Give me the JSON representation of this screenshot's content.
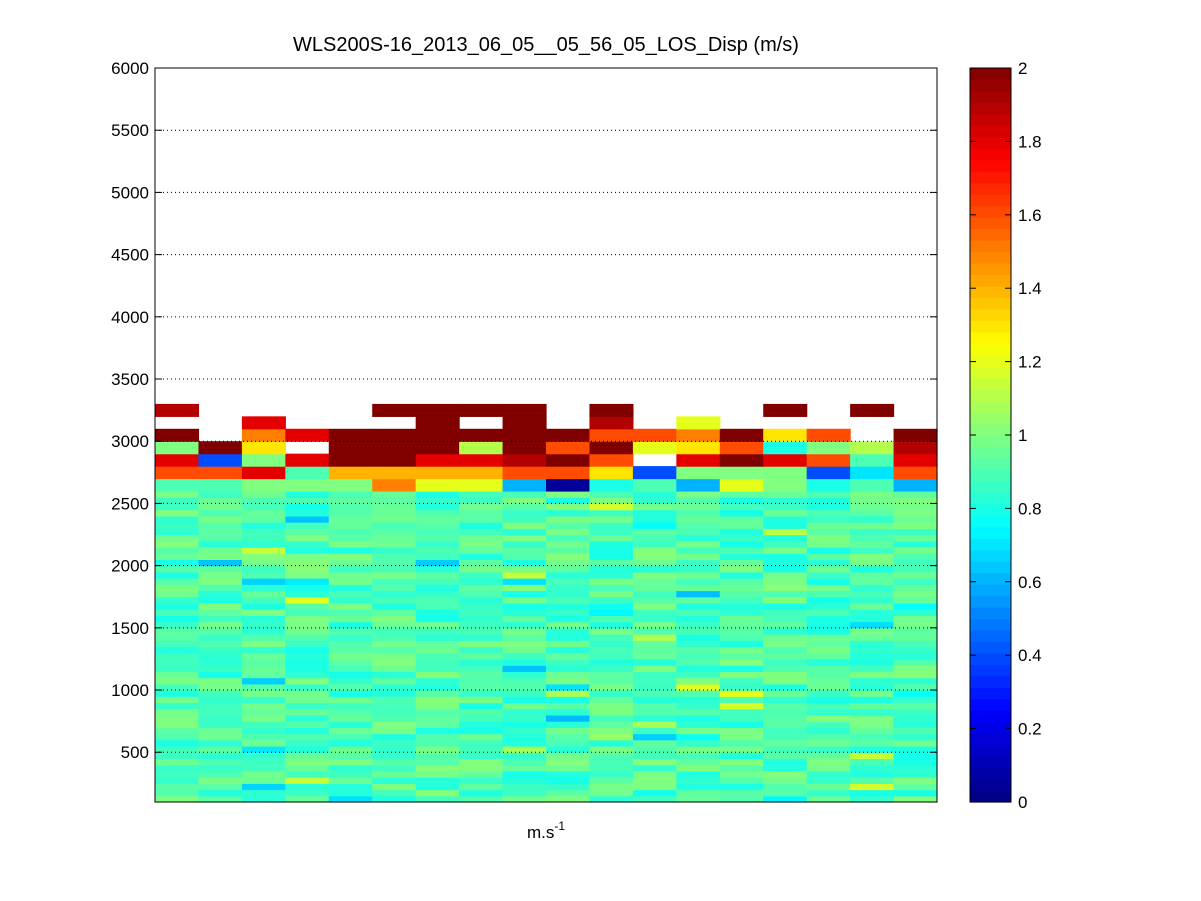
{
  "chart_data": {
    "type": "heatmap",
    "title": "WLS200S-16_2013_06_05__05_56_05_LOS_Disp (m/s)",
    "xlabel": "m.s",
    "xlabel_superscript": "-1",
    "ylabel": "",
    "ylim": [
      100,
      6000
    ],
    "y_ticks": [
      500,
      1000,
      1500,
      2000,
      2500,
      3000,
      3500,
      4000,
      4500,
      5000,
      5500,
      6000
    ],
    "y_grid": "dotted",
    "colorbar": {
      "range": [
        0,
        2
      ],
      "ticks": [
        "0",
        "0.2",
        "0.4",
        "0.6",
        "0.8",
        "1",
        "1.2",
        "1.4",
        "1.6",
        "1.8",
        "2"
      ],
      "colormap": "jet"
    },
    "n_columns": 18,
    "row_height_m": 100,
    "upper_cells_y_start": [
      2600,
      2700,
      2800,
      2900,
      3000,
      3100,
      3200
    ],
    "upper_cells": [
      [
        0.9,
        0.9,
        1.0,
        1.0,
        1.0,
        1.5,
        1.2,
        1.2,
        0.6,
        0.05,
        0.8,
        0.9,
        0.6,
        1.2,
        1.0,
        0.8,
        0.9,
        0.6
      ],
      [
        1.6,
        1.6,
        1.8,
        0.9,
        1.4,
        1.4,
        1.4,
        1.4,
        1.6,
        1.6,
        1.3,
        0.4,
        1.0,
        1.0,
        1.0,
        0.4,
        0.7,
        1.6
      ],
      [
        1.8,
        0.4,
        1.0,
        1.8,
        2.0,
        2.0,
        1.8,
        1.8,
        1.9,
        2.0,
        1.6,
        null,
        1.8,
        2.0,
        1.8,
        1.6,
        0.9,
        1.8
      ],
      [
        1.0,
        2.0,
        1.3,
        null,
        2.0,
        2.0,
        2.0,
        1.1,
        2.0,
        1.6,
        2.0,
        1.2,
        1.3,
        1.6,
        0.8,
        1.0,
        1.1,
        1.9
      ],
      [
        2.0,
        null,
        1.5,
        1.8,
        2.0,
        2.0,
        2.0,
        2.0,
        2.0,
        2.0,
        1.6,
        1.6,
        1.5,
        2.0,
        1.3,
        1.6,
        null,
        2.0
      ],
      [
        null,
        null,
        1.8,
        null,
        null,
        null,
        2.0,
        null,
        2.0,
        null,
        1.9,
        null,
        1.2,
        null,
        null,
        null,
        null,
        null
      ],
      [
        1.9,
        null,
        null,
        null,
        null,
        2.0,
        null,
        2.0,
        2.0,
        null,
        2.0,
        null,
        null,
        null,
        2.0,
        null,
        2.0,
        null
      ]
    ],
    "top_cells": [
      {
        "column": 6,
        "y_start": 3200,
        "value": 2.0
      }
    ],
    "lower_region": {
      "y_range": [
        100,
        2600
      ],
      "value_range": [
        0.6,
        1.2
      ],
      "mean_value": 0.9
    }
  }
}
